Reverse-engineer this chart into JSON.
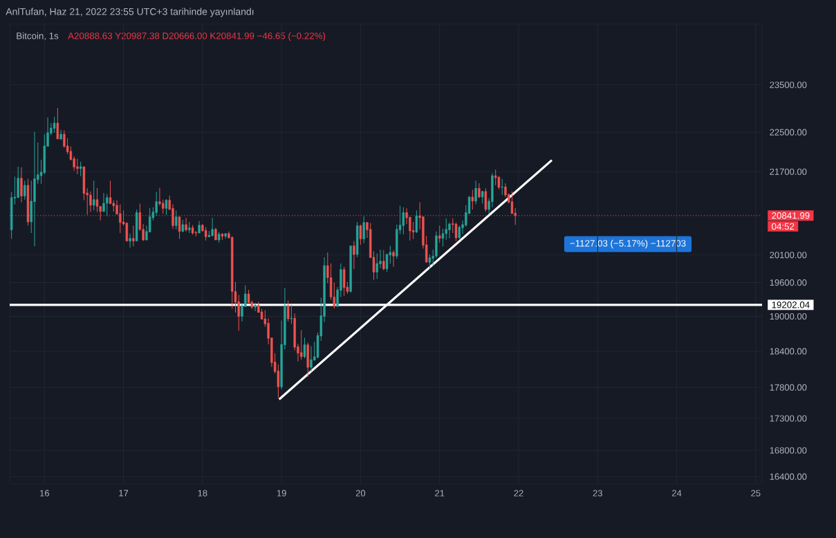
{
  "chart_data": {
    "type": "candlestick",
    "title": "AnlTufan, Haz 21, 2022 23:55 UTC+3 tarihinde yayınlandı",
    "subtitle": "Bitcoin, 1s",
    "annotations": [
      "A20888.63 Y20987.38 D20666.00 K20841.99 −46.65 (−0.22%)",
      "04:52",
      "−1127.03 (−5.17%) −112703"
    ],
    "colors": [
      "#26a69a",
      "#26a69a",
      "#26a69a",
      "#ef5350",
      "#26a69a",
      "#ef5350",
      "#26a69a",
      "#26a69a",
      "#26a69a",
      "#26a69a",
      "#26a69a",
      "#26a69a",
      "#26a69a",
      "#26a69a",
      "#ef5350",
      "#26a69a",
      "#ef5350",
      "#ef5350",
      "#ef5350",
      "#ef5350",
      "#ef5350",
      "#26a69a",
      "#ef5350",
      "#ef5350",
      "#ef5350",
      "#26a69a",
      "#ef5350",
      "#ef5350",
      "#26a69a",
      "#26a69a",
      "#ef5350",
      "#ef5350",
      "#ef5350",
      "#ef5350",
      "#ef5350",
      "#ef5350",
      "#26a69a",
      "#ef5350",
      "#26a69a",
      "#ef5350",
      "#ef5350",
      "#26a69a",
      "#26a69a",
      "#26a69a",
      "#26a69a",
      "#ef5350",
      "#ef5350",
      "#26a69a",
      "#ef5350",
      "#ef5350",
      "#26a69a",
      "#ef5350",
      "#26a69a",
      "#ef5350",
      "#26a69a",
      "#ef5350",
      "#ef5350",
      "#26a69a",
      "#ef5350",
      "#ef5350",
      "#26a69a",
      "#26a69a",
      "#ef5350",
      "#26a69a",
      "#ef5350",
      "#26a69a",
      "#ef5350",
      "#ef5350",
      "#ef5350",
      "#ef5350",
      "#26a69a",
      "#26a69a",
      "#ef5350",
      "#ef5350",
      "#26a69a",
      "#ef5350",
      "#ef5350",
      "#ef5350",
      "#ef5350",
      "#ef5350",
      "#ef5350",
      "#ef5350",
      "#26a69a",
      "#26a69a",
      "#ef5350",
      "#26a69a",
      "#ef5350",
      "#ef5350",
      "#ef5350",
      "#26a69a",
      "#ef5350",
      "#26a69a",
      "#26a69a",
      "#26a69a",
      "#26a69a",
      "#26a69a",
      "#ef5350",
      "#ef5350",
      "#ef5350",
      "#26a69a",
      "#26a69a",
      "#ef5350",
      "#ef5350",
      "#26a69a",
      "#ef5350",
      "#26a69a",
      "#ef5350",
      "#26a69a",
      "#ef5350",
      "#ef5350",
      "#ef5350",
      "#26a69a",
      "#26a69a",
      "#ef5350",
      "#26a69a",
      "#26a69a",
      "#ef5350",
      "#26a69a",
      "#26a69a",
      "#26a69a",
      "#ef5350",
      "#ef5350",
      "#ef5350",
      "#26a69a",
      "#ef5350",
      "#ef5350",
      "#ef5350",
      "#26a69a",
      "#26a69a",
      "#26a69a",
      "#ef5350",
      "#26a69a",
      "#26a69a",
      "#26a69a",
      "#ef5350",
      "#ef5350",
      "#26a69a",
      "#26a69a",
      "#26a69a",
      "#26a69a",
      "#ef5350",
      "#26a69a",
      "#ef5350",
      "#26a69a",
      "#ef5350",
      "#26a69a",
      "#26a69a",
      "#ef5350",
      "#ef5350",
      "#26a69a",
      "#ef5350",
      "#ef5350",
      "#ef5350",
      "#ef5350"
    ],
    "log": "y",
    "grid": true,
    "xlim": [
      15.56,
      25.08
    ],
    "xticks": [
      16,
      17,
      18,
      19,
      20,
      21,
      22,
      23,
      24,
      25
    ],
    "ylim": [
      16290,
      24850
    ],
    "yticks": [
      {
        "value": 16400,
        "label": "16400.00"
      },
      {
        "value": 16800,
        "label": "16800.00"
      },
      {
        "value": 17300,
        "label": "17300.00"
      },
      {
        "value": 17800,
        "label": "17800.00"
      },
      {
        "value": 18400,
        "label": "18400.00"
      },
      {
        "value": 19000,
        "label": "19000.00"
      },
      {
        "value": 19600,
        "label": "19600.00"
      },
      {
        "value": 20100,
        "label": "20100.00"
      },
      {
        "value": 21700,
        "label": "21700.00"
      },
      {
        "value": 22500,
        "label": "22500.00"
      },
      {
        "value": 23500,
        "label": "23500.00"
      }
    ],
    "ref_lines": [
      {
        "axis": "y",
        "value": 19202.04,
        "label": "19202.04",
        "color": "#ffffff",
        "line_style": "solid"
      },
      {
        "axis": "y",
        "value": 20841.99,
        "label": "20841.99",
        "color": "#f23645",
        "line_style": "dotted"
      }
    ],
    "series": [
      {
        "type": "line",
        "x": [
          18.97,
          22.42
        ],
        "values": [
          17606,
          21930
        ],
        "color": "#ffffff"
      }
    ],
    "x": [
      15.5833,
      15.625,
      15.6667,
      15.7083,
      15.75,
      15.7917,
      15.8333,
      15.875,
      15.9167,
      15.9583,
      16,
      16.0417,
      16.0833,
      16.125,
      16.1667,
      16.2083,
      16.25,
      16.2917,
      16.3333,
      16.375,
      16.4167,
      16.4583,
      16.5,
      16.5417,
      16.5833,
      16.625,
      16.6667,
      16.7083,
      16.75,
      16.7917,
      16.8333,
      16.875,
      16.9167,
      16.9583,
      17,
      17.0417,
      17.0833,
      17.125,
      17.1667,
      17.2083,
      17.25,
      17.2917,
      17.3333,
      17.375,
      17.4167,
      17.4583,
      17.5,
      17.5417,
      17.5833,
      17.625,
      17.6667,
      17.7083,
      17.75,
      17.7917,
      17.8333,
      17.875,
      17.9167,
      17.9583,
      18,
      18.0417,
      18.0833,
      18.125,
      18.1667,
      18.2083,
      18.25,
      18.2917,
      18.3333,
      18.375,
      18.4167,
      18.4583,
      18.5,
      18.5417,
      18.5833,
      18.625,
      18.6667,
      18.7083,
      18.75,
      18.7917,
      18.8333,
      18.875,
      18.9167,
      18.9583,
      19,
      19.0417,
      19.0833,
      19.125,
      19.1667,
      19.2083,
      19.25,
      19.2917,
      19.3333,
      19.375,
      19.4167,
      19.4583,
      19.5,
      19.5417,
      19.5833,
      19.625,
      19.6667,
      19.7083,
      19.75,
      19.7917,
      19.8333,
      19.875,
      19.9167,
      19.9583,
      20,
      20.0417,
      20.0833,
      20.125,
      20.1667,
      20.2083,
      20.25,
      20.2917,
      20.3333,
      20.375,
      20.4167,
      20.4583,
      20.5,
      20.5417,
      20.5833,
      20.625,
      20.6667,
      20.7083,
      20.75,
      20.7917,
      20.8333,
      20.875,
      20.9167,
      20.9583,
      21,
      21.0417,
      21.0833,
      21.125,
      21.1667,
      21.2083,
      21.25,
      21.2917,
      21.3333,
      21.375,
      21.4167,
      21.4583,
      21.5,
      21.5417,
      21.5833,
      21.625,
      21.6667,
      21.7083,
      21.75,
      21.7917,
      21.8333,
      21.875,
      21.9167,
      21.9583
    ],
    "ohlc": [
      [
        20570,
        21300,
        20400,
        21190
      ],
      [
        21180,
        21600,
        21060,
        21200
      ],
      [
        21190,
        21800,
        21180,
        21570
      ],
      [
        21570,
        21790,
        21100,
        21220
      ],
      [
        21220,
        21520,
        21150,
        21430
      ],
      [
        21430,
        21560,
        20650,
        20720
      ],
      [
        20720,
        21520,
        20510,
        21120
      ],
      [
        21110,
        22510,
        20260,
        21560
      ],
      [
        21540,
        22290,
        21460,
        21640
      ],
      [
        21620,
        21940,
        21460,
        21690
      ],
      [
        21680,
        22460,
        21650,
        22220
      ],
      [
        22210,
        22810,
        22210,
        22490
      ],
      [
        22480,
        22690,
        22440,
        22590
      ],
      [
        22580,
        22820,
        22490,
        22690
      ],
      [
        22690,
        23010,
        22360,
        22360
      ],
      [
        22360,
        22550,
        22340,
        22460
      ],
      [
        22460,
        22540,
        22180,
        22210
      ],
      [
        22220,
        22380,
        22050,
        22100
      ],
      [
        22110,
        22210,
        21930,
        21940
      ],
      [
        21960,
        22010,
        21720,
        21790
      ],
      [
        21800,
        21960,
        21650,
        21760
      ],
      [
        21760,
        21900,
        21610,
        21800
      ],
      [
        21800,
        21800,
        21140,
        21270
      ],
      [
        21280,
        21370,
        20860,
        21240
      ],
      [
        21240,
        21310,
        20910,
        21040
      ],
      [
        21040,
        21520,
        20940,
        21150
      ],
      [
        21150,
        21380,
        20910,
        21020
      ],
      [
        21020,
        21020,
        20750,
        20920
      ],
      [
        20920,
        21280,
        20920,
        21080
      ],
      [
        21080,
        21260,
        20830,
        21190
      ],
      [
        21190,
        21520,
        21070,
        21070
      ],
      [
        21080,
        21140,
        20920,
        21030
      ],
      [
        21040,
        21140,
        20870,
        20870
      ],
      [
        20880,
        21060,
        20510,
        20710
      ],
      [
        20720,
        20940,
        20650,
        20680
      ],
      [
        20700,
        20710,
        20350,
        20360
      ],
      [
        20360,
        20500,
        20240,
        20410
      ],
      [
        20410,
        20650,
        20260,
        20360
      ],
      [
        20360,
        20960,
        20360,
        20900
      ],
      [
        20900,
        21070,
        20550,
        20580
      ],
      [
        20580,
        20680,
        20360,
        20380
      ],
      [
        20380,
        20650,
        20370,
        20540
      ],
      [
        20530,
        20990,
        20530,
        20820
      ],
      [
        20800,
        21000,
        20750,
        20910
      ],
      [
        20900,
        21300,
        20840,
        21110
      ],
      [
        21110,
        21380,
        21030,
        21070
      ],
      [
        21080,
        21150,
        20880,
        20980
      ],
      [
        20980,
        21160,
        20860,
        21140
      ],
      [
        21140,
        21230,
        20950,
        20960
      ],
      [
        20980,
        21060,
        20590,
        20650
      ],
      [
        20650,
        20940,
        20580,
        20820
      ],
      [
        20820,
        20820,
        20400,
        20540
      ],
      [
        20540,
        20760,
        20530,
        20670
      ],
      [
        20670,
        20800,
        20540,
        20570
      ],
      [
        20570,
        20720,
        20510,
        20610
      ],
      [
        20610,
        20660,
        20480,
        20510
      ],
      [
        20520,
        20550,
        20450,
        20510
      ],
      [
        20510,
        20740,
        20510,
        20660
      ],
      [
        20660,
        20680,
        20540,
        20550
      ],
      [
        20560,
        20620,
        20370,
        20440
      ],
      [
        20440,
        20550,
        20430,
        20470
      ],
      [
        20460,
        20800,
        20450,
        20580
      ],
      [
        20580,
        20610,
        20380,
        20380
      ],
      [
        20380,
        20530,
        20330,
        20490
      ],
      [
        20490,
        20510,
        20380,
        20450
      ],
      [
        20450,
        20510,
        20410,
        20500
      ],
      [
        20500,
        20540,
        20410,
        20420
      ],
      [
        20430,
        20450,
        19130,
        19440
      ],
      [
        19440,
        19610,
        19070,
        19250
      ],
      [
        19260,
        19380,
        18750,
        19000
      ],
      [
        19000,
        19230,
        18910,
        19180
      ],
      [
        19170,
        19550,
        19170,
        19400
      ],
      [
        19400,
        19470,
        19240,
        19240
      ],
      [
        19250,
        19280,
        19130,
        19160
      ],
      [
        19160,
        19240,
        19090,
        19200
      ],
      [
        19200,
        19260,
        19070,
        19070
      ],
      [
        19080,
        19130,
        18950,
        18950
      ],
      [
        18960,
        19110,
        18820,
        18870
      ],
      [
        18880,
        18970,
        18520,
        18620
      ],
      [
        18630,
        18630,
        18140,
        18210
      ],
      [
        18220,
        18370,
        18030,
        18060
      ],
      [
        18070,
        18180,
        17630,
        17810
      ],
      [
        17810,
        18930,
        17770,
        18520
      ],
      [
        18510,
        19500,
        18430,
        19190
      ],
      [
        19190,
        19280,
        18910,
        18960
      ],
      [
        18960,
        19200,
        18870,
        18970
      ],
      [
        18970,
        19050,
        18420,
        18470
      ],
      [
        18480,
        18530,
        18230,
        18370
      ],
      [
        18380,
        18760,
        18260,
        18310
      ],
      [
        18310,
        18630,
        18280,
        18510
      ],
      [
        18510,
        18550,
        17970,
        18130
      ],
      [
        18130,
        18490,
        18060,
        18260
      ],
      [
        18250,
        18560,
        18250,
        18310
      ],
      [
        18300,
        18720,
        18280,
        18670
      ],
      [
        18660,
        19330,
        18580,
        19010
      ],
      [
        19000,
        20060,
        18900,
        19910
      ],
      [
        19910,
        20150,
        19590,
        19690
      ],
      [
        19690,
        19950,
        19290,
        19340
      ],
      [
        19340,
        19600,
        19140,
        19180
      ],
      [
        19180,
        19520,
        19160,
        19470
      ],
      [
        19460,
        19950,
        19340,
        19840
      ],
      [
        19840,
        19890,
        19360,
        19510
      ],
      [
        19520,
        19610,
        19400,
        19440
      ],
      [
        19440,
        20270,
        19420,
        20270
      ],
      [
        20270,
        20360,
        19850,
        20110
      ],
      [
        20110,
        20720,
        20060,
        20650
      ],
      [
        20650,
        20670,
        20290,
        20400
      ],
      [
        20400,
        20830,
        20320,
        20710
      ],
      [
        20710,
        20720,
        20420,
        20570
      ],
      [
        20580,
        20700,
        20050,
        20050
      ],
      [
        20060,
        20170,
        19650,
        19790
      ],
      [
        19790,
        20130,
        19670,
        19950
      ],
      [
        19940,
        20200,
        19860,
        19990
      ],
      [
        19990,
        20190,
        19820,
        19850
      ],
      [
        19850,
        20130,
        19790,
        20110
      ],
      [
        20100,
        20270,
        19940,
        20150
      ],
      [
        20150,
        20190,
        19890,
        20080
      ],
      [
        20080,
        20670,
        20030,
        20580
      ],
      [
        20570,
        21030,
        20490,
        20660
      ],
      [
        20650,
        21000,
        20480,
        20900
      ],
      [
        20900,
        20980,
        20680,
        20800
      ],
      [
        20810,
        20820,
        20370,
        20550
      ],
      [
        20560,
        20720,
        20400,
        20530
      ],
      [
        20530,
        20940,
        20510,
        20840
      ],
      [
        20840,
        21100,
        20580,
        20800
      ],
      [
        20820,
        20830,
        20220,
        20280
      ],
      [
        20290,
        20460,
        19970,
        19970
      ],
      [
        19970,
        20110,
        19850,
        20050
      ],
      [
        20040,
        20200,
        19900,
        20080
      ],
      [
        20080,
        20540,
        20040,
        20460
      ],
      [
        20460,
        20650,
        20330,
        20410
      ],
      [
        20410,
        20590,
        20260,
        20500
      ],
      [
        20500,
        20790,
        20380,
        20580
      ],
      [
        20570,
        20710,
        20410,
        20680
      ],
      [
        20690,
        20790,
        20510,
        20670
      ],
      [
        20680,
        20710,
        20360,
        20420
      ],
      [
        20420,
        20650,
        20400,
        20620
      ],
      [
        20610,
        20750,
        20490,
        20670
      ],
      [
        20660,
        21040,
        20630,
        20900
      ],
      [
        20880,
        21220,
        20880,
        21200
      ],
      [
        21200,
        21340,
        20960,
        21120
      ],
      [
        21120,
        21520,
        21060,
        21370
      ],
      [
        21370,
        21470,
        21180,
        21200
      ],
      [
        21200,
        21320,
        21070,
        21310
      ],
      [
        21310,
        21370,
        20920,
        20960
      ],
      [
        20960,
        21180,
        20870,
        21120
      ],
      [
        21110,
        21670,
        21000,
        21620
      ],
      [
        21620,
        21740,
        21430,
        21580
      ],
      [
        21590,
        21610,
        21350,
        21390
      ],
      [
        21390,
        21560,
        21240,
        21400
      ],
      [
        21400,
        21470,
        21200,
        21240
      ],
      [
        21250,
        21270,
        21080,
        21100
      ],
      [
        21110,
        21310,
        20880,
        20880
      ],
      [
        20888.63,
        20987.38,
        20666.0,
        20841.99
      ]
    ]
  }
}
